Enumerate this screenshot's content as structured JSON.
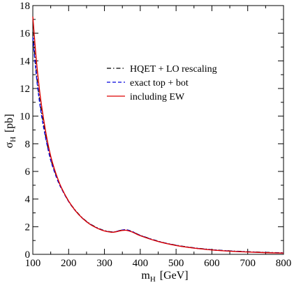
{
  "chart_data": {
    "type": "line",
    "xlabel_main": "m",
    "xlabel_sub": "H",
    "xlabel_unit": "[GeV]",
    "ylabel_main": "σ",
    "ylabel_sub": "H",
    "ylabel_unit": "[pb]",
    "xlim": [
      100,
      800
    ],
    "ylim": [
      0,
      18
    ],
    "xticks": [
      100,
      200,
      300,
      400,
      500,
      600,
      700,
      800
    ],
    "yticks": [
      0,
      2,
      4,
      6,
      8,
      10,
      12,
      14,
      16,
      18
    ],
    "grid": false,
    "legend_position": "upper-right",
    "series": [
      {
        "name": "HQET + LO rescaling",
        "color": "#000000",
        "dash": "dash-dot",
        "x": [
          100,
          110,
          120,
          130,
          140,
          150,
          160,
          170,
          180,
          200,
          220,
          240,
          260,
          280,
          300,
          320,
          330,
          340,
          350,
          360,
          370,
          380,
          400,
          450,
          500,
          550,
          600,
          650,
          700,
          750,
          800
        ],
        "y": [
          16.1,
          13.1,
          11.0,
          9.4,
          8.0,
          6.9,
          6.1,
          5.4,
          4.8,
          3.85,
          3.15,
          2.6,
          2.2,
          1.92,
          1.72,
          1.62,
          1.64,
          1.7,
          1.76,
          1.78,
          1.72,
          1.62,
          1.38,
          0.95,
          0.66,
          0.47,
          0.34,
          0.25,
          0.19,
          0.14,
          0.11
        ]
      },
      {
        "name": "exact top + bot",
        "color": "#0000dd",
        "dash": "dashed",
        "x": [
          100,
          110,
          120,
          130,
          140,
          150,
          160,
          170,
          180,
          200,
          220,
          240,
          260,
          280,
          300,
          320,
          330,
          340,
          350,
          360,
          370,
          380,
          400,
          450,
          500,
          550,
          600,
          650,
          700,
          750,
          800
        ],
        "y": [
          15.7,
          12.9,
          10.8,
          9.2,
          7.9,
          6.8,
          6.0,
          5.3,
          4.75,
          3.82,
          3.12,
          2.58,
          2.18,
          1.9,
          1.7,
          1.61,
          1.63,
          1.7,
          1.76,
          1.78,
          1.72,
          1.62,
          1.37,
          0.94,
          0.65,
          0.46,
          0.33,
          0.24,
          0.18,
          0.13,
          0.1
        ]
      },
      {
        "name": "including EW",
        "color": "#dd0000",
        "dash": "solid",
        "x": [
          100,
          110,
          120,
          130,
          140,
          150,
          160,
          170,
          180,
          200,
          220,
          240,
          260,
          280,
          300,
          320,
          330,
          340,
          350,
          360,
          370,
          380,
          400,
          450,
          500,
          550,
          600,
          650,
          700,
          750,
          800
        ],
        "y": [
          17.2,
          14.0,
          11.6,
          9.8,
          8.3,
          7.1,
          6.2,
          5.45,
          4.82,
          3.85,
          3.12,
          2.58,
          2.17,
          1.89,
          1.69,
          1.6,
          1.62,
          1.68,
          1.73,
          1.74,
          1.68,
          1.59,
          1.35,
          0.93,
          0.64,
          0.45,
          0.32,
          0.23,
          0.17,
          0.12,
          0.09
        ]
      }
    ]
  }
}
